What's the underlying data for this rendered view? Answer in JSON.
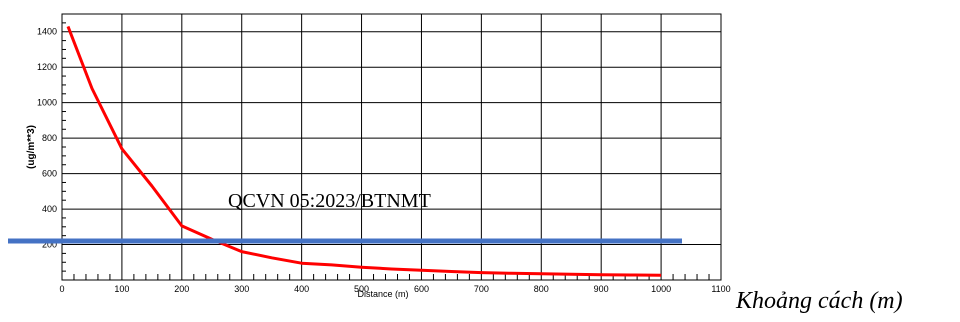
{
  "chart_data": {
    "type": "line",
    "xlabel": "Distance (m)",
    "ylabel": "(ug/m**3)",
    "outer_xlabel": "Khoảng cách (m)",
    "xlim": [
      0,
      1100
    ],
    "ylim": [
      0,
      1500
    ],
    "x_ticks": [
      "0",
      "100",
      "200",
      "300",
      "400",
      "500",
      "600",
      "700",
      "800",
      "900",
      "1000",
      "1100"
    ],
    "y_ticks": [
      "200",
      "400",
      "600",
      "800",
      "1000",
      "1200",
      "1400"
    ],
    "grid": true,
    "series": [
      {
        "color": "#ff0000",
        "x": [
          10,
          50,
          100,
          150,
          200,
          250,
          300,
          350,
          400,
          450,
          500,
          550,
          600,
          650,
          700,
          750,
          800,
          850,
          900,
          950,
          1000
        ],
        "y": [
          1430,
          1080,
          740,
          530,
          305,
          230,
          160,
          125,
          95,
          85,
          72,
          62,
          55,
          48,
          42,
          38,
          35,
          32,
          30,
          28,
          27
        ]
      }
    ],
    "threshold": {
      "label": "QCVN 05:2023/BTNMT",
      "value": 220,
      "color": "#4472c4"
    }
  }
}
